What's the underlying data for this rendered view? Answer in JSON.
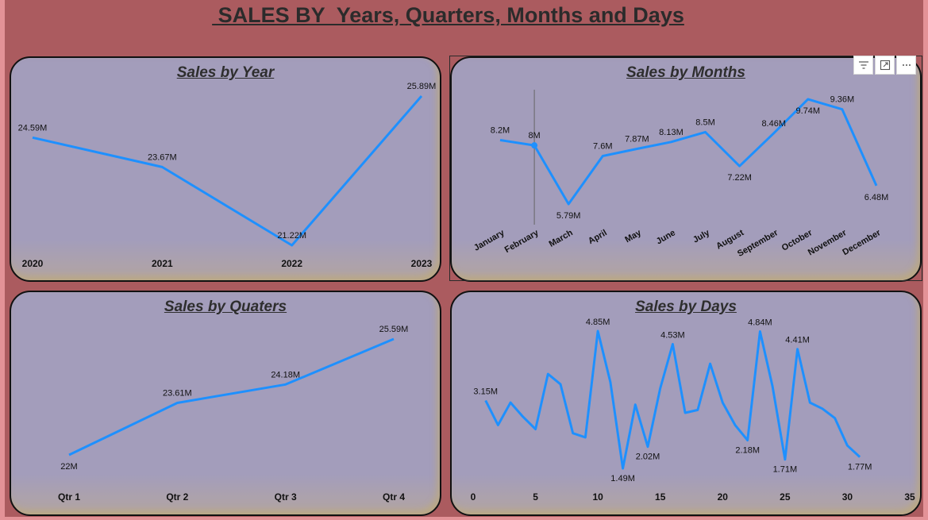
{
  "page": {
    "title": " SALES BY  Years, Quarters, Months and Days",
    "line_color": "#1e90ff",
    "toolbar": [
      {
        "name": "filter-icon"
      },
      {
        "name": "focus-mode-icon"
      },
      {
        "name": "more-options-icon"
      }
    ]
  },
  "chart_data": [
    {
      "id": "year",
      "type": "line",
      "title": "Sales by Year",
      "categories": [
        "2020",
        "2021",
        "2022",
        "2023"
      ],
      "values": [
        24.59,
        23.67,
        21.22,
        25.89
      ],
      "data_labels": [
        "24.59M",
        "23.67M",
        "21.22M",
        "25.89M"
      ],
      "unit": "M",
      "ylim": [
        21.22,
        25.89
      ],
      "grid": false,
      "legend": "none"
    },
    {
      "id": "months",
      "type": "line",
      "title": "Sales by Months",
      "categories": [
        "January",
        "February",
        "March",
        "April",
        "May",
        "June",
        "July",
        "August",
        "September",
        "October",
        "November",
        "December"
      ],
      "values": [
        8.2,
        8.0,
        5.79,
        7.6,
        7.87,
        8.13,
        8.5,
        7.22,
        8.46,
        9.74,
        9.36,
        6.48
      ],
      "data_labels": [
        "8.2M",
        "8M",
        "5.79M",
        "7.6M",
        "7.87M",
        "8.13M",
        "8.5M",
        "7.22M",
        "8.46M",
        "9.74M",
        "9.36M",
        "6.48M"
      ],
      "unit": "M",
      "ylim": [
        5.79,
        9.74
      ],
      "highlighted_category": "February",
      "grid": false,
      "legend": "none"
    },
    {
      "id": "quarters",
      "type": "line",
      "title": "Sales by Quaters",
      "categories": [
        "Qtr 1",
        "Qtr 2",
        "Qtr 3",
        "Qtr 4"
      ],
      "values": [
        22.0,
        23.61,
        24.18,
        25.59
      ],
      "data_labels": [
        "22M",
        "23.61M",
        "24.18M",
        "25.59M"
      ],
      "unit": "M",
      "ylim": [
        22.0,
        25.59
      ],
      "grid": false,
      "legend": "none"
    },
    {
      "id": "days",
      "type": "line",
      "title": "Sales by Days",
      "x": [
        1,
        2,
        3,
        4,
        5,
        6,
        7,
        8,
        9,
        10,
        11,
        12,
        13,
        14,
        15,
        16,
        17,
        18,
        19,
        20,
        21,
        22,
        23,
        24,
        25,
        26,
        27,
        28,
        29,
        30,
        31
      ],
      "values": [
        3.15,
        2.55,
        3.1,
        2.75,
        2.45,
        3.8,
        3.55,
        2.35,
        2.25,
        4.85,
        3.6,
        1.49,
        3.05,
        2.02,
        3.45,
        4.53,
        2.85,
        2.92,
        4.05,
        3.1,
        2.55,
        2.18,
        4.84,
        3.5,
        1.71,
        4.41,
        3.1,
        2.95,
        2.72,
        2.05,
        1.77
      ],
      "data_labels": [
        {
          "x": 1,
          "text": "3.15M"
        },
        {
          "x": 10,
          "text": "4.85M"
        },
        {
          "x": 12,
          "text": "1.49M"
        },
        {
          "x": 14,
          "text": "2.02M"
        },
        {
          "x": 16,
          "text": "4.53M"
        },
        {
          "x": 22,
          "text": "2.18M"
        },
        {
          "x": 23,
          "text": "4.84M"
        },
        {
          "x": 25,
          "text": "1.71M"
        },
        {
          "x": 26,
          "text": "4.41M"
        },
        {
          "x": 31,
          "text": "1.77M"
        }
      ],
      "xticks": [
        0,
        5,
        10,
        15,
        20,
        25,
        30,
        35
      ],
      "xlim": [
        0,
        35
      ],
      "ylim": [
        1.49,
        4.85
      ],
      "unit": "M",
      "grid": false,
      "legend": "none"
    }
  ]
}
